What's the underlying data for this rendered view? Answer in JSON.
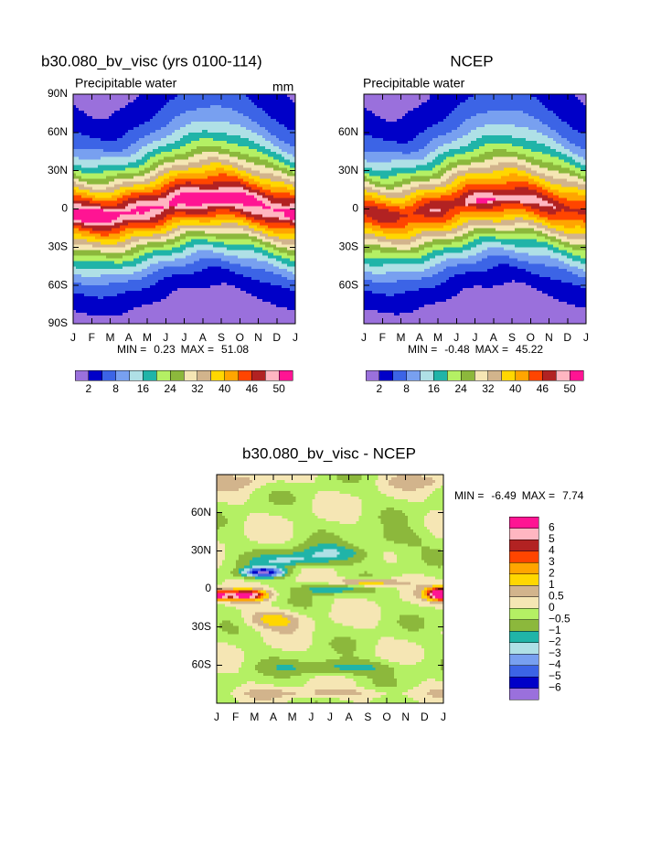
{
  "chart_data": [
    {
      "type": "contour",
      "title": "b30.080_bv_visc (yrs 0100-114)",
      "subtitle": "Precipitable water",
      "units": "mm",
      "categories": [
        "J",
        "F",
        "M",
        "A",
        "M",
        "J",
        "J",
        "A",
        "S",
        "O",
        "N",
        "D",
        "J"
      ],
      "ylim": [
        -90,
        90
      ],
      "yticks": [
        {
          "value": 90,
          "label": "90N"
        },
        {
          "value": 60,
          "label": "60N"
        },
        {
          "value": 30,
          "label": "30N"
        },
        0,
        {
          "value": -30,
          "label": "30S"
        },
        {
          "value": -60,
          "label": "60S"
        },
        {
          "value": -90,
          "label": "90S"
        }
      ],
      "min_label": "MIN =",
      "min": 0.23,
      "max_label": "MAX =",
      "max": 51.08,
      "colorbar": {
        "orientation": "horizontal",
        "colors": [
          "#9a70dc",
          "#0000c8",
          "#3c64e6",
          "#78a0f0",
          "#afe0e6",
          "#20b4a8",
          "#b4f064",
          "#8cb83c",
          "#f5e6b4",
          "#d2b48c",
          "#ffd700",
          "#ffa500",
          "#ff4500",
          "#b22222",
          "#ffb6c1",
          "#ff1493"
        ],
        "ticks": [
          2,
          8,
          16,
          24,
          32,
          40,
          46,
          50
        ]
      }
    },
    {
      "type": "contour",
      "title": "NCEP",
      "subtitle": "Precipitable water",
      "categories": [
        "J",
        "F",
        "M",
        "A",
        "M",
        "J",
        "J",
        "A",
        "S",
        "O",
        "N",
        "D",
        "J"
      ],
      "ylim": [
        -90,
        90
      ],
      "yticks": [
        {
          "value": 60,
          "label": "60N"
        },
        {
          "value": 30,
          "label": "30N"
        },
        0,
        {
          "value": -30,
          "label": "30S"
        },
        {
          "value": -60,
          "label": "60S"
        }
      ],
      "min_label": "MIN =",
      "min": -0.48,
      "max_label": "MAX =",
      "max": 45.22,
      "colorbar": {
        "orientation": "horizontal",
        "colors": [
          "#9a70dc",
          "#0000c8",
          "#3c64e6",
          "#78a0f0",
          "#afe0e6",
          "#20b4a8",
          "#b4f064",
          "#8cb83c",
          "#f5e6b4",
          "#d2b48c",
          "#ffd700",
          "#ffa500",
          "#ff4500",
          "#b22222",
          "#ffb6c1",
          "#ff1493"
        ],
        "ticks": [
          2,
          8,
          16,
          24,
          32,
          40,
          46,
          50
        ]
      }
    },
    {
      "type": "contour",
      "title": "b30.080_bv_visc - NCEP",
      "categories": [
        "J",
        "F",
        "M",
        "A",
        "M",
        "J",
        "J",
        "A",
        "S",
        "O",
        "N",
        "D",
        "J"
      ],
      "ylim": [
        -90,
        90
      ],
      "yticks": [
        {
          "value": 60,
          "label": "60N"
        },
        {
          "value": 30,
          "label": "30N"
        },
        0,
        {
          "value": -30,
          "label": "30S"
        },
        {
          "value": -60,
          "label": "60S"
        }
      ],
      "min_label": "MIN =",
      "min": -6.49,
      "max_label": "MAX =",
      "max": 7.74,
      "colorbar": {
        "orientation": "vertical",
        "colors": [
          "#9a70dc",
          "#0000c8",
          "#3c64e6",
          "#78a0f0",
          "#afe0e6",
          "#20b4a8",
          "#8cb83c",
          "#b4f064",
          "#f5e6b4",
          "#d2b48c",
          "#ffd700",
          "#ffa500",
          "#ff4500",
          "#b22222",
          "#ffb6c1",
          "#ff1493"
        ],
        "ticks": [
          {
            "value": -6,
            "label": "−6"
          },
          {
            "value": -5,
            "label": "−5"
          },
          {
            "value": -4,
            "label": "−4"
          },
          {
            "value": -3,
            "label": "−3"
          },
          {
            "value": -2,
            "label": "−2"
          },
          {
            "value": -1,
            "label": "−1"
          },
          {
            "value": -0.5,
            "label": "−0.5"
          },
          0,
          0.5,
          1,
          2,
          3,
          4,
          5,
          6
        ]
      }
    }
  ]
}
